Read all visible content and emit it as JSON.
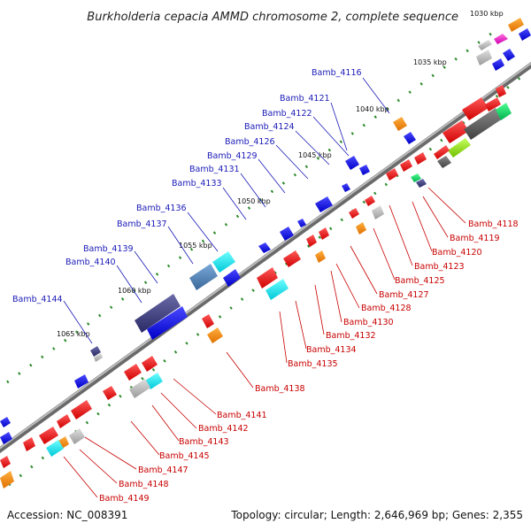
{
  "title": "Burkholderia cepacia AMMD chromosome 2, complete sequence",
  "footer": {
    "accession": "Accession: NC_008391",
    "summary": "Topology: circular; Length: 2,646,969 bp; Genes: 2,355"
  },
  "kbp_labels": [
    "1030 kbp",
    "1035 kbp",
    "1040 kbp",
    "1045 kbp",
    "1050 kbp",
    "1055 kbp",
    "1060 kbp",
    "1065 kbp"
  ],
  "genes_above": [
    "Bamb_4116",
    "Bamb_4121",
    "Bamb_4122",
    "Bamb_4124",
    "Bamb_4126",
    "Bamb_4129",
    "Bamb_4131",
    "Bamb_4133",
    "Bamb_4136",
    "Bamb_4137",
    "Bamb_4139",
    "Bamb_4140",
    "Bamb_4144"
  ],
  "genes_below": [
    "Bamb_4118",
    "Bamb_4119",
    "Bamb_4120",
    "Bamb_4123",
    "Bamb_4125",
    "Bamb_4127",
    "Bamb_4128",
    "Bamb_4130",
    "Bamb_4132",
    "Bamb_4134",
    "Bamb_4135",
    "Bamb_4138",
    "Bamb_4141",
    "Bamb_4142",
    "Bamb_4143",
    "Bamb_4145",
    "Bamb_4147",
    "Bamb_4148",
    "Bamb_4149"
  ],
  "colors": {
    "plus_strand": "#1f1fe8",
    "minus_strand": "#f01818",
    "backbone": "#8a8a8a",
    "tick_green": "#2a8a2a",
    "label_blue": "#1a1ab8",
    "label_red": "#c80000"
  }
}
